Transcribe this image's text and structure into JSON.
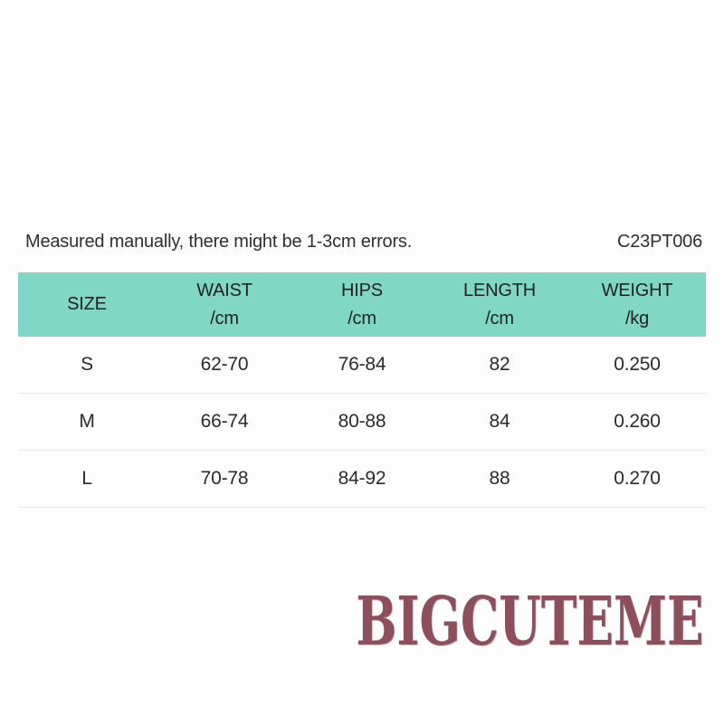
{
  "header": {
    "note": "Measured manually, there might be 1-3cm errors.",
    "product_code": "C23PT006"
  },
  "size_chart": {
    "columns": [
      {
        "label": "SIZE",
        "unit": ""
      },
      {
        "label": "WAIST",
        "unit": "/cm"
      },
      {
        "label": "HIPS",
        "unit": "/cm"
      },
      {
        "label": "LENGTH",
        "unit": "/cm"
      },
      {
        "label": "WEIGHT",
        "unit": "/kg"
      }
    ],
    "rows": [
      {
        "size": "S",
        "waist": "62-70",
        "hips": "76-84",
        "length": "82",
        "weight": "0.250"
      },
      {
        "size": "M",
        "waist": "66-74",
        "hips": "80-88",
        "length": "84",
        "weight": "0.260"
      },
      {
        "size": "L",
        "waist": "70-78",
        "hips": "84-92",
        "length": "88",
        "weight": "0.270"
      }
    ]
  },
  "footer": {
    "brand": "BIGCUTEME"
  },
  "colors": {
    "table_header_bg": "#80d7c6",
    "brand_color": "#8d4f5b",
    "text_color": "#2e2e2e",
    "divider_color": "#e8e8e8",
    "background": "#fdfdfd"
  }
}
